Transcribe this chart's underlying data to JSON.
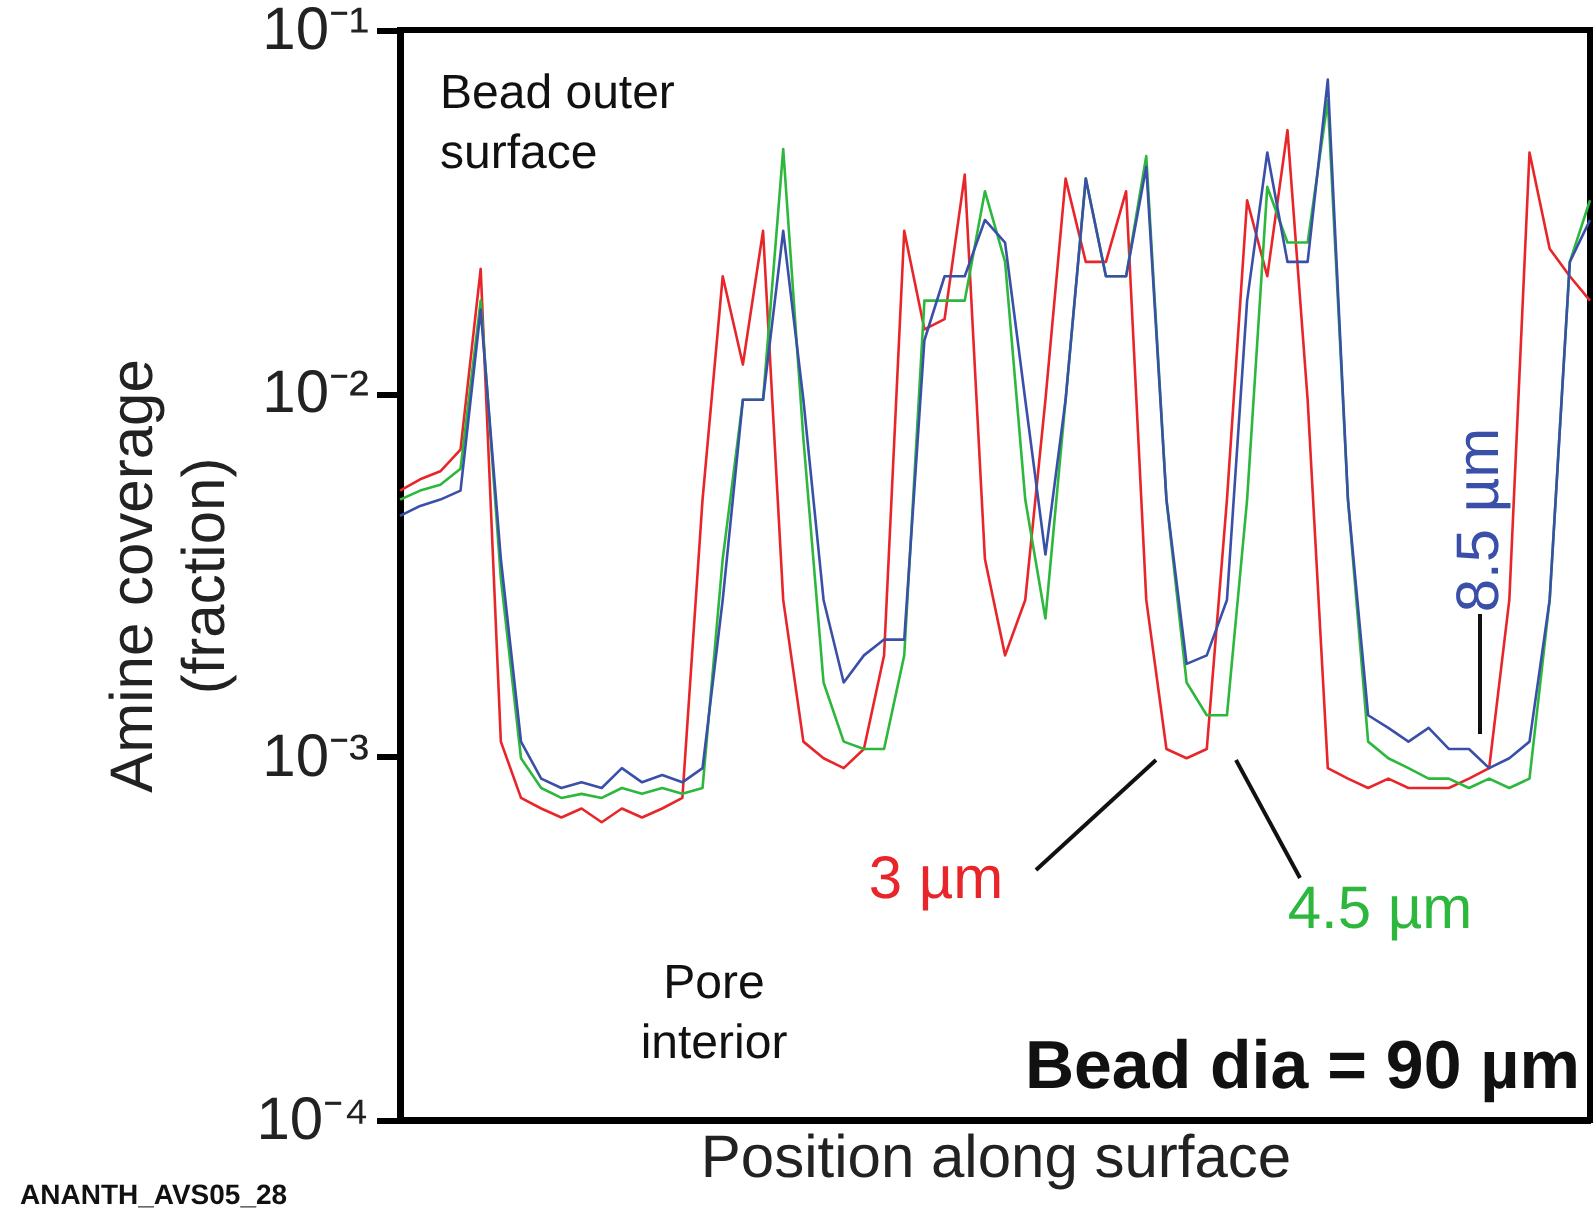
{
  "chart_data": {
    "type": "line",
    "xlabel": "Position along surface",
    "ylabel": "Amine coverage\n(fraction)",
    "categories": [
      null,
      null,
      null,
      null,
      null,
      null,
      null,
      null,
      null,
      null,
      null,
      null,
      null,
      null,
      null,
      null,
      null,
      null,
      null,
      null,
      null,
      null,
      null,
      null,
      null,
      null,
      null,
      null,
      null,
      null,
      null,
      null,
      null,
      null,
      null,
      null,
      null,
      null,
      null,
      null,
      null,
      null,
      null,
      null,
      null,
      null,
      null,
      null,
      null,
      null,
      null,
      null,
      null,
      null,
      null,
      null,
      null,
      null,
      null,
      null
    ],
    "series": [
      {
        "name": "3 µm",
        "color": "#e8262a",
        "values": [
          0.0054,
          0.0058,
          0.0061,
          0.007,
          0.022,
          0.0011,
          0.00077,
          0.00072,
          0.00068,
          0.00072,
          0.00066,
          0.00072,
          0.00068,
          0.00072,
          0.00077,
          0.0051,
          0.021,
          0.012,
          0.028,
          0.0027,
          0.0011,
          0.00099,
          0.00093,
          0.00105,
          0.0019,
          0.028,
          0.015,
          0.016,
          0.04,
          0.0035,
          0.0019,
          0.0027,
          0.0096,
          0.039,
          0.023,
          0.023,
          0.036,
          0.0027,
          0.00105,
          0.00099,
          0.00105,
          0.0051,
          0.034,
          0.021,
          0.053,
          0.0096,
          0.00093,
          0.00087,
          0.00082,
          0.00087,
          0.00082,
          0.00082,
          0.00082,
          0.00087,
          0.00093,
          0.0027,
          0.046,
          0.025,
          0.021,
          0.018
        ]
      },
      {
        "name": "4.5 µm",
        "color": "#2db83d",
        "values": [
          0.0051,
          0.0054,
          0.0056,
          0.0062,
          0.018,
          0.0031,
          0.00099,
          0.00082,
          0.00077,
          0.00079,
          0.00077,
          0.00082,
          0.00079,
          0.00082,
          0.00079,
          0.00082,
          0.0035,
          0.0096,
          0.0096,
          0.047,
          0.0075,
          0.0016,
          0.0011,
          0.00105,
          0.00105,
          0.0019,
          0.018,
          0.018,
          0.018,
          0.036,
          0.023,
          0.0051,
          0.0024,
          0.0096,
          0.039,
          0.021,
          0.021,
          0.045,
          0.0051,
          0.0016,
          0.0013,
          0.0013,
          0.0051,
          0.037,
          0.026,
          0.026,
          0.064,
          0.0051,
          0.0011,
          0.00099,
          0.00093,
          0.00087,
          0.00087,
          0.00082,
          0.00087,
          0.00082,
          0.00087,
          0.0027,
          0.023,
          0.034
        ]
      },
      {
        "name": "8.5 µm",
        "color": "#3a4fa8",
        "values": [
          0.0046,
          0.0049,
          0.0051,
          0.0054,
          0.017,
          0.0035,
          0.0011,
          0.00087,
          0.00082,
          0.00085,
          0.00082,
          0.00093,
          0.00085,
          0.00089,
          0.00085,
          0.00093,
          0.0027,
          0.0096,
          0.0096,
          0.028,
          0.0096,
          0.0027,
          0.0016,
          0.0019,
          0.0021,
          0.0021,
          0.014,
          0.021,
          0.021,
          0.03,
          0.026,
          0.0096,
          0.0036,
          0.0096,
          0.039,
          0.021,
          0.021,
          0.042,
          0.0051,
          0.0018,
          0.0019,
          0.0027,
          0.018,
          0.046,
          0.023,
          0.023,
          0.073,
          0.0051,
          0.0013,
          0.0012,
          0.0011,
          0.0012,
          0.00105,
          0.00105,
          0.00093,
          0.00099,
          0.0011,
          0.0027,
          0.023,
          0.03
        ]
      }
    ],
    "ylim": [
      0.0001,
      0.1
    ],
    "yticks": [
      {
        "value": 0.0001,
        "label": "10⁻⁴"
      },
      {
        "value": 0.001,
        "label": "10⁻³"
      },
      {
        "value": 0.01,
        "label": "10⁻²"
      },
      {
        "value": 0.1,
        "label": "10⁻¹"
      }
    ],
    "log": true,
    "tick_labels": "y",
    "annotations": [
      "Bead outer surface",
      "Pore interior",
      "Bead dia = 90 µm",
      "ANANTH_AVS05_28"
    ]
  }
}
